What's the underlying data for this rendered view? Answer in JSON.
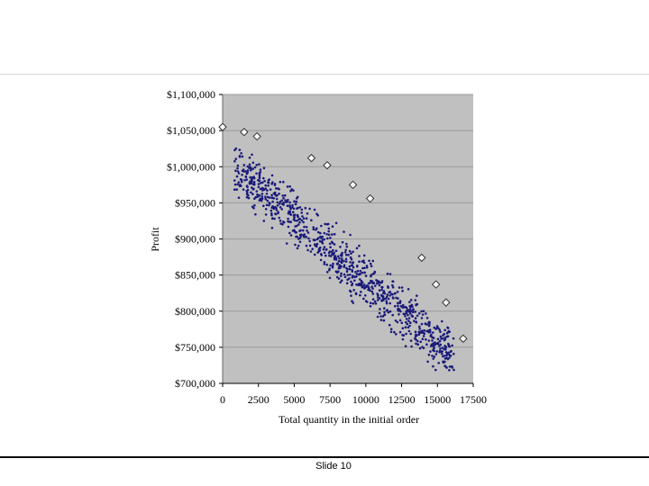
{
  "footer": {
    "slide_label": "Slide 10"
  },
  "colors": {
    "plot_background": "#c0c0c0",
    "gridline": "#9a9a9a",
    "sample_point": "#1a1a7a",
    "frontier_fill": "#ffffff",
    "frontier_stroke": "#333333"
  },
  "chart_data": {
    "type": "scatter",
    "title": "",
    "xlabel": "Total quantity in the initial order",
    "ylabel": "Profit",
    "xlim": [
      0,
      17500
    ],
    "ylim": [
      700000,
      1100000
    ],
    "x_ticks": [
      0,
      2500,
      5000,
      7500,
      10000,
      12500,
      15000,
      17500
    ],
    "x_tick_labels": [
      "0",
      "2500",
      "5000",
      "7500",
      "10000",
      "12500",
      "15000",
      "17500"
    ],
    "y_ticks": [
      700000,
      750000,
      800000,
      850000,
      900000,
      950000,
      1000000,
      1050000,
      1100000
    ],
    "y_tick_labels": [
      "$700,000",
      "$750,000",
      "$800,000",
      "$850,000",
      "$900,000",
      "$950,000",
      "$1,000,000",
      "$1,050,000",
      "$1,100,000"
    ],
    "grid": "horizontal",
    "legend": "none",
    "series": [
      {
        "marker": "diamond",
        "points": [
          [
            0,
            1055000
          ],
          [
            1500,
            1048000
          ],
          [
            2400,
            1042000
          ],
          [
            6200,
            1012000
          ],
          [
            7300,
            1002000
          ],
          [
            9100,
            975000
          ],
          [
            10300,
            956000
          ],
          [
            13900,
            874000
          ],
          [
            14900,
            837000
          ],
          [
            15600,
            812000
          ],
          [
            16800,
            762000
          ]
        ]
      },
      {
        "marker": "dot",
        "sample_count": 900,
        "trend": {
          "intercept": 1055000,
          "slope_per_unit": -17.1
        },
        "x_range": [
          800,
          16200
        ],
        "residual_range": [
          -95000,
          10000
        ]
      }
    ]
  }
}
